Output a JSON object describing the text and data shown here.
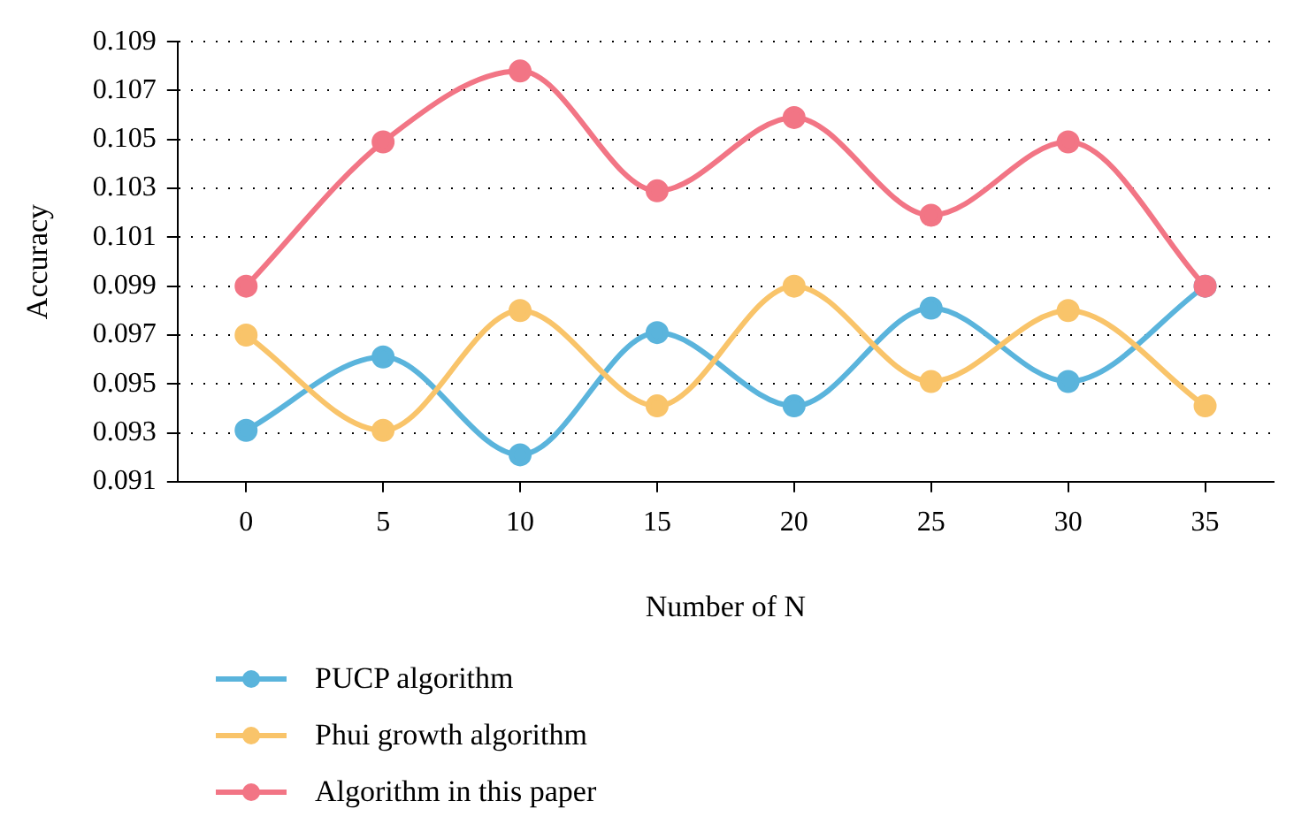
{
  "chart_data": {
    "type": "line",
    "xlabel": "Number of N",
    "ylabel": "Accuracy",
    "categories": [
      "0",
      "5",
      "10",
      "15",
      "20",
      "25",
      "30",
      "35"
    ],
    "series": [
      {
        "name": "PUCP algorithm",
        "color": "#5ab4dc",
        "values": [
          0.0931,
          0.0961,
          0.0921,
          0.0971,
          0.0941,
          0.0981,
          0.0951,
          0.099
        ]
      },
      {
        "name": "Phui growth algorithm",
        "color": "#f9c46a",
        "values": [
          0.097,
          0.0931,
          0.098,
          0.0941,
          0.099,
          0.0951,
          0.098,
          0.0941
        ]
      },
      {
        "name": "Algorithm in this paper",
        "color": "#f27585",
        "values": [
          0.099,
          0.1049,
          0.1078,
          0.1029,
          0.1059,
          0.1019,
          0.1049,
          0.099
        ]
      }
    ],
    "ylim": [
      0.091,
      0.109
    ],
    "yticks": [
      0.091,
      0.093,
      0.095,
      0.097,
      0.099,
      0.101,
      0.103,
      0.105,
      0.107,
      0.109
    ],
    "grid": "y",
    "legend": "bottom",
    "marker": "circle",
    "line_style": "solid"
  }
}
